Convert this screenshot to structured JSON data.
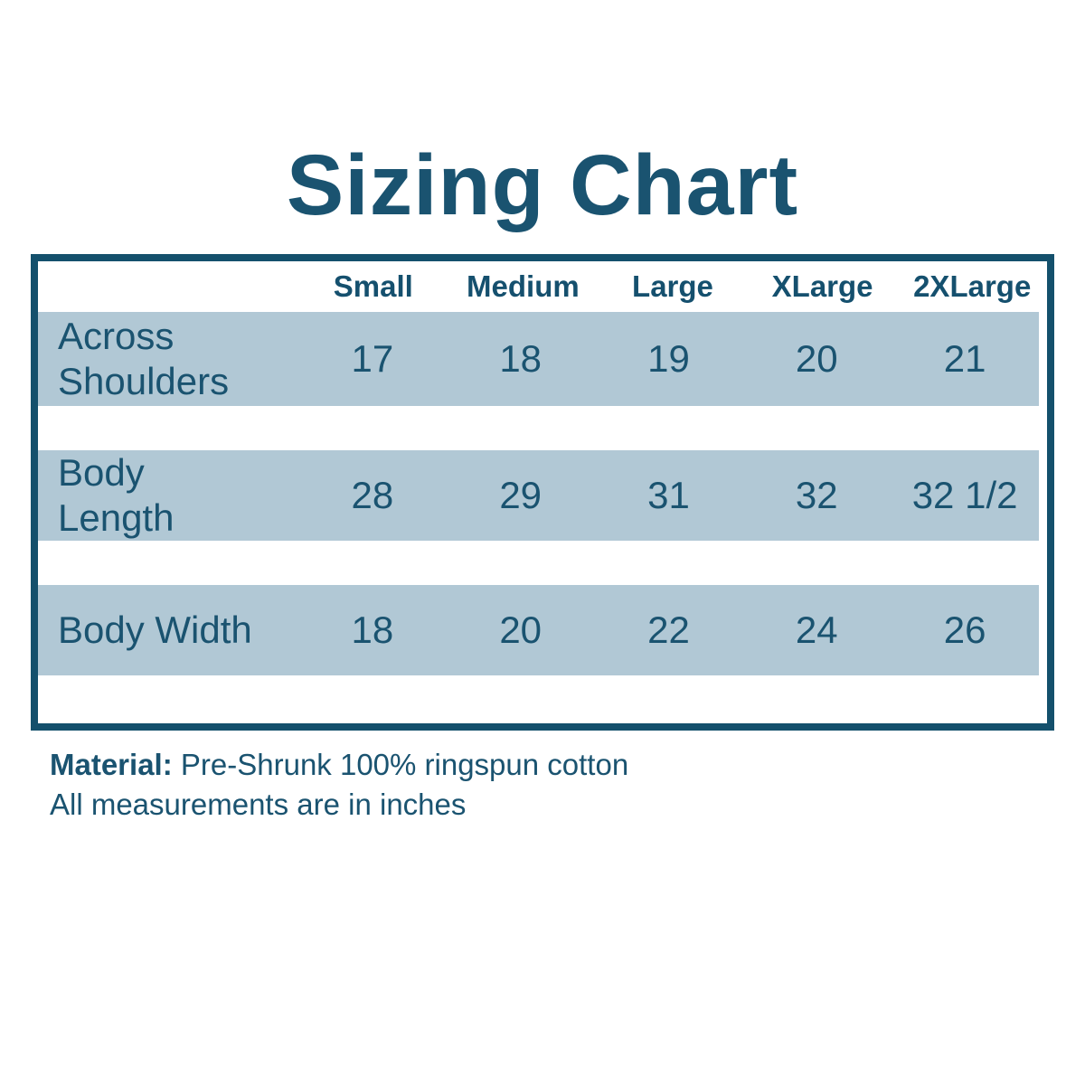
{
  "title": "Sizing Chart",
  "colors": {
    "text": "#1a5370",
    "border": "#14506c",
    "row_background": "#b1c8d5",
    "page_background": "#ffffff"
  },
  "chart_data": {
    "type": "table",
    "title": "Sizing Chart",
    "columns": [
      "Small",
      "Medium",
      "Large",
      "XLarge",
      "2XLarge"
    ],
    "rows": [
      {
        "label": "Across Shoulders",
        "values": [
          "17",
          "18",
          "19",
          "20",
          "21"
        ]
      },
      {
        "label": "Body Length",
        "values": [
          "28",
          "29",
          "31",
          "32",
          "32 1/2"
        ]
      },
      {
        "label": "Body Width",
        "values": [
          "18",
          "20",
          "22",
          "24",
          "26"
        ]
      }
    ],
    "layout": {
      "grid": "off",
      "row_shading": "alternating shaded bands with white gaps",
      "units": "inches"
    }
  },
  "footer": {
    "material_label": "Material:",
    "material_value": "Pre-Shrunk 100% ringspun cotton",
    "note": "All measurements are in inches"
  }
}
